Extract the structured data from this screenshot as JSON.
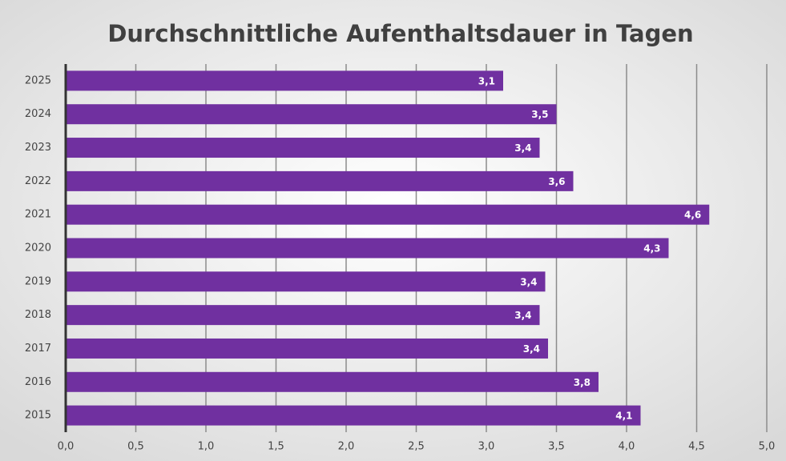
{
  "chart_data": {
    "type": "hbar",
    "title": "Durchschnittliche Aufenthaltsdauer in Tagen",
    "categories": [
      "2025",
      "2024",
      "2023",
      "2022",
      "2021",
      "2020",
      "2019",
      "2018",
      "2017",
      "2016",
      "2015"
    ],
    "values": [
      3.12,
      3.5,
      3.38,
      3.62,
      4.59,
      4.3,
      3.42,
      3.38,
      3.44,
      3.8,
      4.1
    ],
    "value_labels": [
      "3,1",
      "3,5",
      "3,4",
      "3,6",
      "4,6",
      "4,3",
      "3,4",
      "3,4",
      "3,4",
      "3,8",
      "4,1"
    ],
    "color": "#7030a0",
    "xlim": [
      0,
      5
    ],
    "xticks": [
      {
        "value": 0,
        "label": "0,0"
      },
      {
        "value": 0.5,
        "label": "0,5"
      },
      {
        "value": 1,
        "label": "1,0"
      },
      {
        "value": 1.5,
        "label": "1,5"
      },
      {
        "value": 2,
        "label": "2,0"
      },
      {
        "value": 2.5,
        "label": "2,5"
      },
      {
        "value": 3,
        "label": "3,0"
      },
      {
        "value": 3.5,
        "label": "3,5"
      },
      {
        "value": 4,
        "label": "4,0"
      },
      {
        "value": 4.5,
        "label": "4,5"
      },
      {
        "value": 5,
        "label": "5,0"
      }
    ],
    "grid": true
  }
}
